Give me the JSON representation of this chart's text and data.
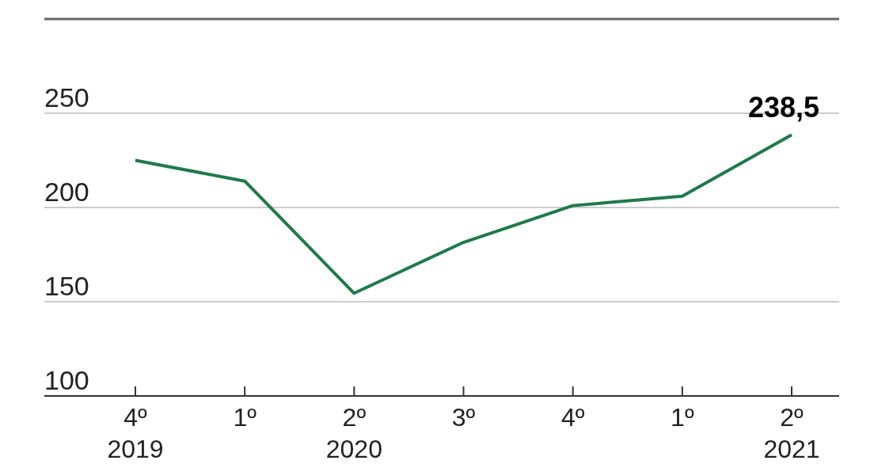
{
  "chart_data": {
    "type": "line",
    "categories": [
      "4º\n2019",
      "1º",
      "2º\n2020",
      "3º",
      "4º",
      "1º",
      "2º\n2021"
    ],
    "series": [
      {
        "color": "#1e7a4a",
        "values": [
          225,
          214,
          154.5,
          181.5,
          201,
          206,
          238.5
        ],
        "value_labels": [
          null,
          null,
          null,
          null,
          null,
          null,
          "238,5"
        ]
      }
    ],
    "ylim": [
      100,
      300
    ],
    "yticks": [
      100,
      150,
      200,
      250
    ],
    "grid": "y",
    "marker": "none",
    "line_style": "solid"
  }
}
